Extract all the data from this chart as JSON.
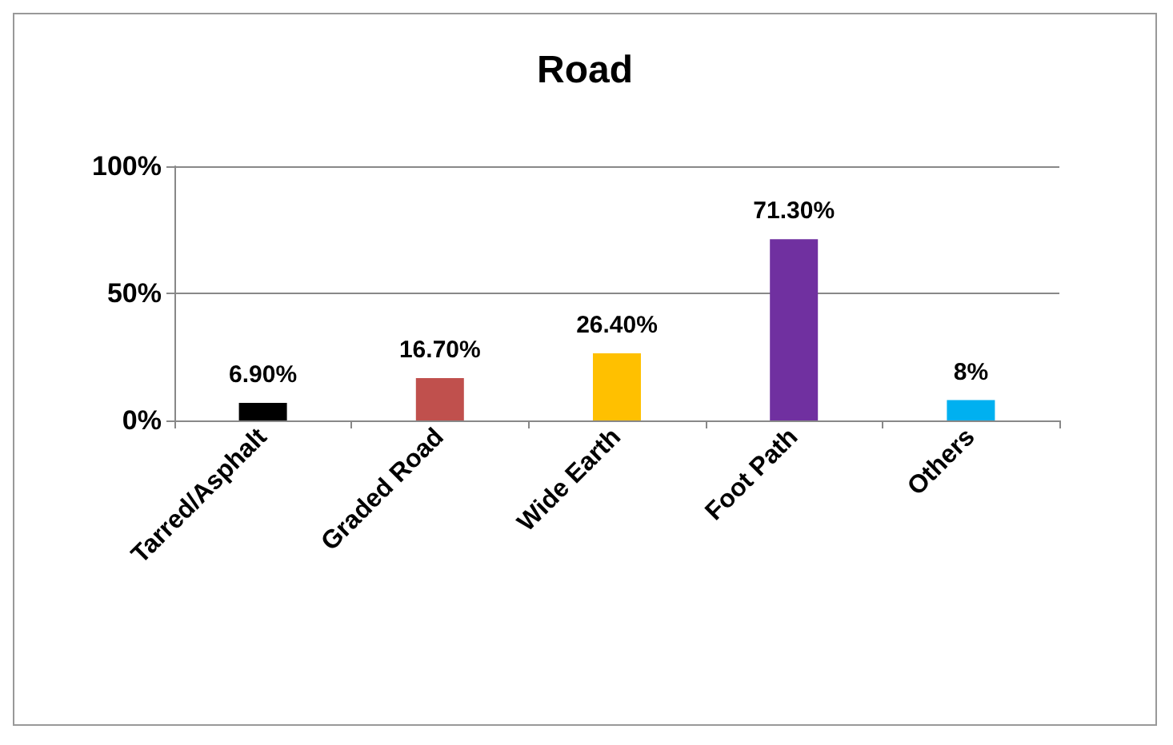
{
  "chart_data": {
    "type": "bar",
    "title": "Road",
    "categories": [
      "Tarred/Asphalt",
      "Graded Road",
      "Wide Earth",
      "Foot Path",
      "Others"
    ],
    "values": [
      6.9,
      16.7,
      26.4,
      71.3,
      8
    ],
    "colors": [
      "#000000",
      "#c0504d",
      "#ffc000",
      "#7030a0",
      "#00b0f0"
    ],
    "value_labels": [
      "6.90%",
      "16.70%",
      "26.40%",
      "71.30%",
      "8%"
    ],
    "ylim": [
      0,
      100
    ],
    "yticks": [
      {
        "value": 0,
        "label": "0%"
      },
      {
        "value": 50,
        "label": "50%"
      },
      {
        "value": 100,
        "label": "100%"
      }
    ],
    "grid": "y"
  }
}
